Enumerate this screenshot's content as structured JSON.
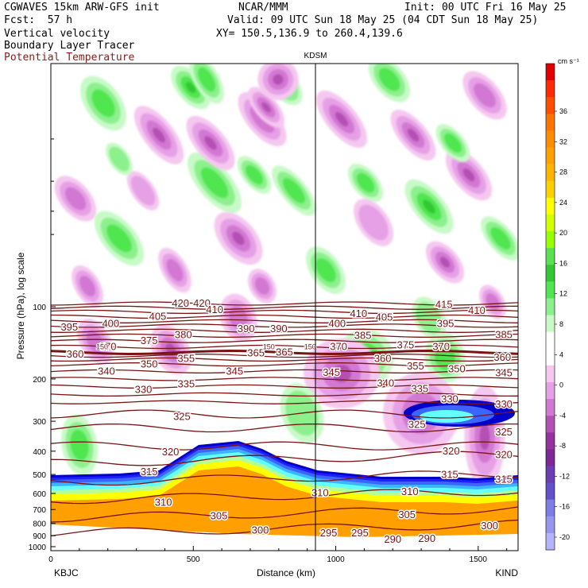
{
  "header": {
    "model": "CGWAVES 15km ARW-GFS init",
    "org": "NCAR/MMM",
    "init": "Init: 00 UTC Fri 16 May 25",
    "fcst": "Fcst:  57 h",
    "valid": "Valid: 09 UTC Sun 18 May 25 (04 CDT Sun 18 May 25)",
    "field1": "Vertical velocity",
    "field2": "Boundary Layer Tracer",
    "xy": "XY= 150.5,136.9 to 260.4,139.6",
    "field3": "Potential Temperature"
  },
  "colors": {
    "theta_contour": "#7a1414",
    "field3_text": "#8b1a1a"
  },
  "chart_data": {
    "type": "heatmap",
    "title": "",
    "station_marker": "KDSM",
    "station_marker_x_km": 930,
    "left_endpoint": "KBJC",
    "right_endpoint": "KIND",
    "xlabel": "Distance (km)",
    "ylabel": "Pressure (hPa), log scale",
    "x_ticks": [
      "0",
      "500",
      "1000",
      "1500"
    ],
    "x_tick_values": [
      0,
      500,
      1000,
      1500
    ],
    "xlim": [
      0,
      1640
    ],
    "y_ticks": [
      "100",
      "200",
      "300",
      "400",
      "500",
      "600",
      "700",
      "800",
      "900",
      "1000"
    ],
    "y_tick_values": [
      100,
      200,
      300,
      400,
      500,
      600,
      700,
      800,
      900,
      1000
    ],
    "y_scale": "log",
    "colorbar": {
      "unit_label": "cm s⁻¹",
      "tick_labels": [
        "36",
        "32",
        "28",
        "24",
        "20",
        "16",
        "12",
        "8",
        "4",
        "0",
        "-4",
        "-8",
        "-12",
        "-16",
        "-20"
      ],
      "colors": [
        "#e10000",
        "#ff2a00",
        "#ff4d00",
        "#ff7300",
        "#ff8c00",
        "#ffa000",
        "#ffb400",
        "#ffd000",
        "#ffff00",
        "#d2ff00",
        "#96ff00",
        "#5ae150",
        "#32c832",
        "#50e650",
        "#8cf08c",
        "#c8fac8",
        "#ffffff",
        "#ffffff",
        "#f5c8f0",
        "#e6a0e6",
        "#d278d2",
        "#b450b4",
        "#9632a0",
        "#7d2896",
        "#6e3cb4",
        "#6450c8",
        "#7d7de6",
        "#9696f0",
        "#b4b4ff"
      ],
      "bl_tracer_colors": [
        "#0000c8",
        "#1e1eff",
        "#3c64ff",
        "#3cb4ff",
        "#64ffff",
        "#b4ff96",
        "#ffff00",
        "#ffa000"
      ]
    },
    "theta_contour_labels": [
      {
        "v": "420",
        "x": 455,
        "p": 97
      },
      {
        "v": "420",
        "x": 530,
        "p": 97
      },
      {
        "v": "415",
        "x": 1380,
        "p": 98
      },
      {
        "v": "410",
        "x": 575,
        "p": 103
      },
      {
        "v": "410",
        "x": 1080,
        "p": 107
      },
      {
        "v": "410",
        "x": 1495,
        "p": 104
      },
      {
        "v": "405",
        "x": 375,
        "p": 110
      },
      {
        "v": "405",
        "x": 1170,
        "p": 111
      },
      {
        "v": "400",
        "x": 210,
        "p": 118
      },
      {
        "v": "400",
        "x": 1005,
        "p": 118
      },
      {
        "v": "395",
        "x": 65,
        "p": 122
      },
      {
        "v": "395",
        "x": 1385,
        "p": 118
      },
      {
        "v": "390",
        "x": 685,
        "p": 124
      },
      {
        "v": "390",
        "x": 800,
        "p": 124
      },
      {
        "v": "385",
        "x": 1095,
        "p": 132
      },
      {
        "v": "385",
        "x": 1590,
        "p": 131
      },
      {
        "v": "380",
        "x": 465,
        "p": 131
      },
      {
        "v": "375",
        "x": 345,
        "p": 139
      },
      {
        "v": "375",
        "x": 1245,
        "p": 145
      },
      {
        "v": "370",
        "x": 200,
        "p": 147
      },
      {
        "v": "370",
        "x": 1010,
        "p": 147
      },
      {
        "v": "370",
        "x": 1370,
        "p": 147
      },
      {
        "v": "365",
        "x": 820,
        "p": 155
      },
      {
        "v": "365",
        "x": 720,
        "p": 156
      },
      {
        "v": "360",
        "x": 85,
        "p": 158
      },
      {
        "v": "360",
        "x": 1165,
        "p": 165
      },
      {
        "v": "360",
        "x": 1585,
        "p": 163
      },
      {
        "v": "355",
        "x": 475,
        "p": 165
      },
      {
        "v": "355",
        "x": 1280,
        "p": 177
      },
      {
        "v": "350",
        "x": 345,
        "p": 174
      },
      {
        "v": "350",
        "x": 1425,
        "p": 182
      },
      {
        "v": "345",
        "x": 645,
        "p": 186
      },
      {
        "v": "345",
        "x": 985,
        "p": 188
      },
      {
        "v": "345",
        "x": 1590,
        "p": 189
      },
      {
        "v": "340",
        "x": 195,
        "p": 186
      },
      {
        "v": "340",
        "x": 1175,
        "p": 209
      },
      {
        "v": "335",
        "x": 475,
        "p": 210
      },
      {
        "v": "335",
        "x": 1295,
        "p": 220
      },
      {
        "v": "330",
        "x": 325,
        "p": 222
      },
      {
        "v": "330",
        "x": 1400,
        "p": 243
      },
      {
        "v": "330",
        "x": 1590,
        "p": 255
      },
      {
        "v": "325",
        "x": 460,
        "p": 287
      },
      {
        "v": "325",
        "x": 1285,
        "p": 310
      },
      {
        "v": "325",
        "x": 1590,
        "p": 333
      },
      {
        "v": "320",
        "x": 420,
        "p": 403
      },
      {
        "v": "320",
        "x": 1405,
        "p": 400
      },
      {
        "v": "320",
        "x": 1590,
        "p": 415
      },
      {
        "v": "315",
        "x": 345,
        "p": 488
      },
      {
        "v": "315",
        "x": 1400,
        "p": 502
      },
      {
        "v": "315",
        "x": 1590,
        "p": 525
      },
      {
        "v": "310",
        "x": 395,
        "p": 655
      },
      {
        "v": "310",
        "x": 945,
        "p": 598
      },
      {
        "v": "310",
        "x": 1260,
        "p": 592
      },
      {
        "v": "305",
        "x": 590,
        "p": 745
      },
      {
        "v": "305",
        "x": 1250,
        "p": 738
      },
      {
        "v": "300",
        "x": 735,
        "p": 855
      },
      {
        "v": "300",
        "x": 1540,
        "p": 820
      },
      {
        "v": "295",
        "x": 975,
        "p": 880
      },
      {
        "v": "295",
        "x": 1085,
        "p": 880
      },
      {
        "v": "290",
        "x": 1200,
        "p": 935
      },
      {
        "v": "290",
        "x": 1320,
        "p": 925
      }
    ],
    "inline_small_labels": [
      {
        "v": "150",
        "x": 180,
        "p": 147
      },
      {
        "v": "150",
        "x": 765,
        "p": 147
      },
      {
        "v": "150",
        "x": 910,
        "p": 147
      }
    ]
  }
}
